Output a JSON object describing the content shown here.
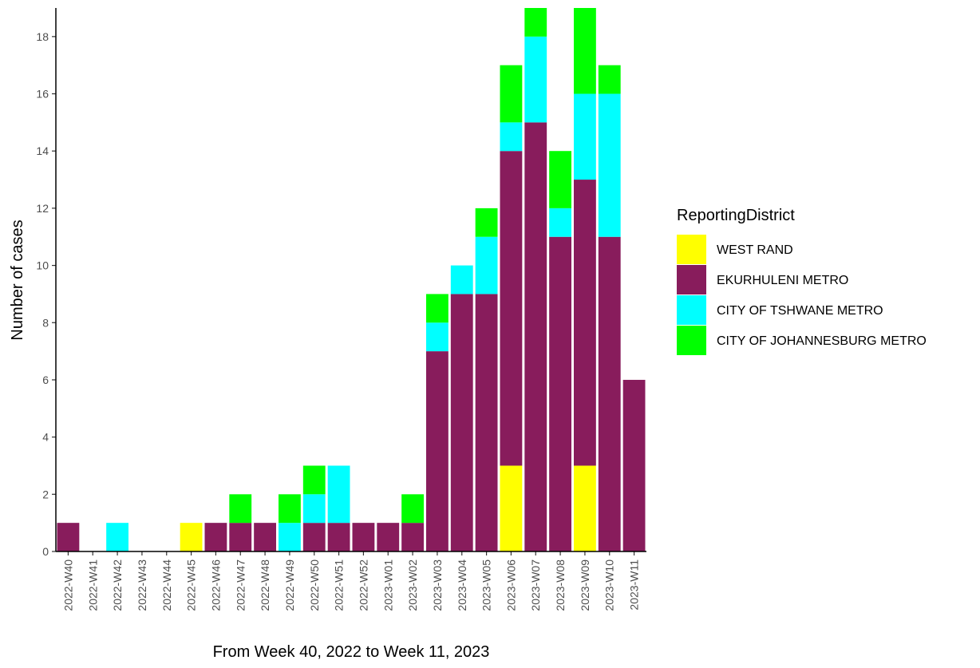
{
  "chart_data": {
    "type": "bar",
    "stacked": true,
    "xlabel": "From Week 40, 2022 to Week 11, 2023",
    "ylabel": "Number of cases",
    "ylim": [
      0,
      19
    ],
    "yticks": [
      0,
      2,
      4,
      6,
      8,
      10,
      12,
      14,
      16,
      18
    ],
    "grid": false,
    "legend_position": "right",
    "legend_title": "ReportingDistrict",
    "categories": [
      "2022-W40",
      "2022-W41",
      "2022-W42",
      "2022-W43",
      "2022-W44",
      "2022-W45",
      "2022-W46",
      "2022-W47",
      "2022-W48",
      "2022-W49",
      "2022-W50",
      "2022-W51",
      "2022-W52",
      "2023-W01",
      "2023-W02",
      "2023-W03",
      "2023-W04",
      "2023-W05",
      "2023-W06",
      "2023-W07",
      "2023-W08",
      "2023-W09",
      "2023-W10",
      "2023-W11"
    ],
    "series": [
      {
        "name": "WEST RAND",
        "color": "#ffff00",
        "values": [
          0,
          0,
          0,
          0,
          0,
          1,
          0,
          0,
          0,
          0,
          0,
          0,
          0,
          0,
          0,
          0,
          0,
          0,
          3,
          0,
          0,
          3,
          0,
          0
        ]
      },
      {
        "name": "EKURHULENI METRO",
        "color": "#881c5c",
        "values": [
          1,
          0,
          0,
          0,
          0,
          0,
          1,
          1,
          1,
          0,
          1,
          1,
          1,
          1,
          1,
          7,
          9,
          9,
          11,
          15,
          11,
          10,
          11,
          6
        ]
      },
      {
        "name": "CITY OF TSHWANE METRO",
        "color": "#00ffff",
        "values": [
          0,
          0,
          1,
          0,
          0,
          0,
          0,
          0,
          0,
          1,
          1,
          2,
          0,
          0,
          0,
          1,
          1,
          2,
          1,
          3,
          1,
          3,
          5,
          0
        ]
      },
      {
        "name": "CITY OF JOHANNESBURG METRO",
        "color": "#00ff00",
        "values": [
          0,
          0,
          0,
          0,
          0,
          0,
          0,
          1,
          0,
          1,
          1,
          0,
          0,
          0,
          1,
          1,
          0,
          1,
          2,
          1,
          2,
          3,
          1,
          0
        ]
      }
    ]
  }
}
